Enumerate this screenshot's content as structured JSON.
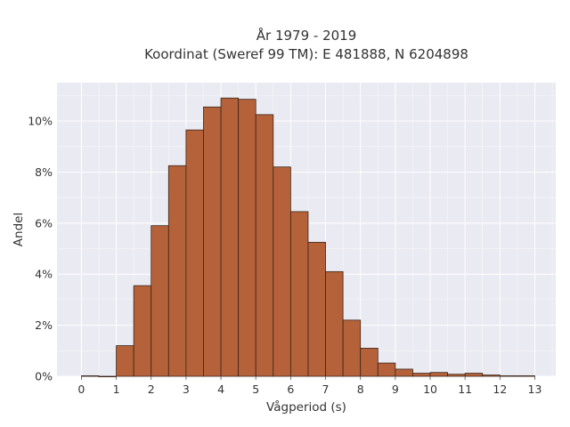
{
  "chart_data": {
    "type": "bar",
    "title_line1": "År 1979 - 2019",
    "title_line2": "Koordinat (Sweref 99 TM): E 481888, N 6204898",
    "xlabel": "Vågperiod (s)",
    "ylabel": "Andel",
    "xlim": [
      -0.7,
      13.6
    ],
    "ylim": [
      0,
      11.5
    ],
    "x_ticks": [
      0,
      1,
      2,
      3,
      4,
      5,
      6,
      7,
      8,
      9,
      10,
      11,
      12,
      13
    ],
    "x_tick_labels": [
      "0",
      "1",
      "2",
      "3",
      "4",
      "5",
      "6",
      "7",
      "8",
      "9",
      "10",
      "11",
      "12",
      "13"
    ],
    "y_ticks": [
      0,
      2,
      4,
      6,
      8,
      10
    ],
    "y_tick_labels": [
      "0%",
      "2%",
      "4%",
      "6%",
      "8%",
      "10%"
    ],
    "bin_width": 0.5,
    "bin_starts": [
      0,
      0.5,
      1,
      1.5,
      2,
      2.5,
      3,
      3.5,
      4,
      4.5,
      5,
      5.5,
      6,
      6.5,
      7,
      7.5,
      8,
      8.5,
      9,
      9.5,
      10,
      10.5,
      11,
      11.5,
      12,
      12.5
    ],
    "values": [
      0.02,
      0.0,
      1.2,
      3.55,
      5.9,
      8.25,
      9.65,
      10.55,
      10.9,
      10.85,
      10.25,
      8.2,
      6.45,
      5.25,
      4.1,
      2.2,
      1.1,
      0.52,
      0.28,
      0.12,
      0.15,
      0.08,
      0.12,
      0.05,
      0.02,
      0.02
    ],
    "grid": true,
    "colors": {
      "bar_fill": "#b5623a",
      "bar_edge": "#3a2418",
      "plot_background": "#eaeaf2",
      "grid": "#ffffff"
    }
  }
}
